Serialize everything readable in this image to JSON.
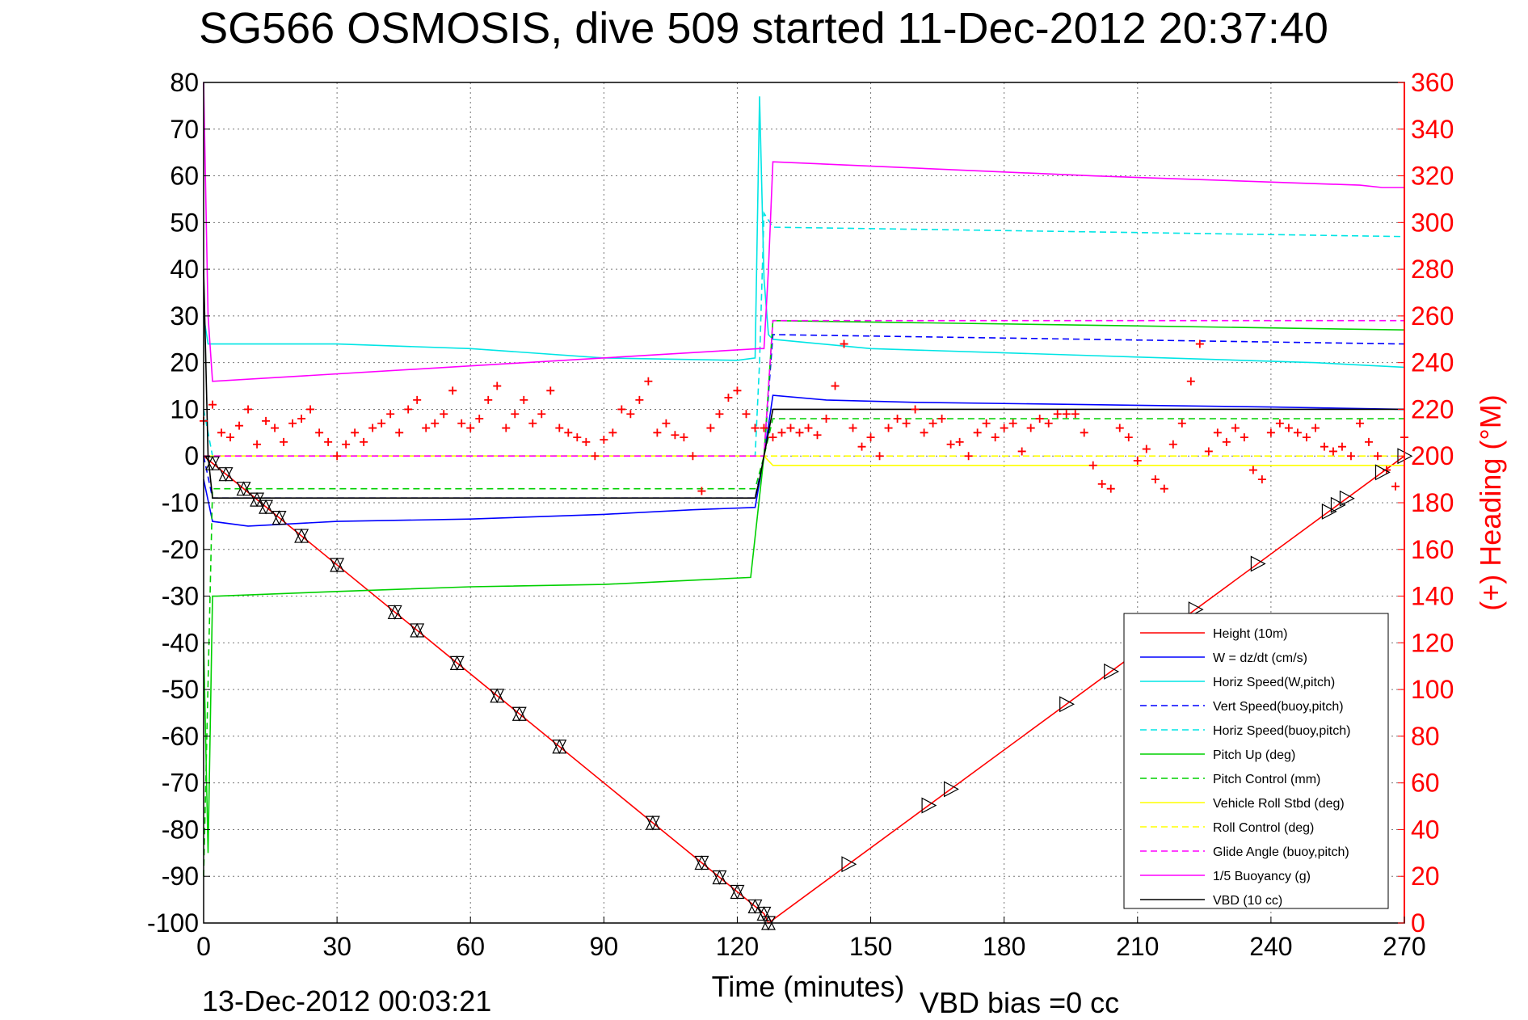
{
  "chart_data": {
    "type": "line",
    "title": "SG566 OSMOSIS, dive 509 started 11-Dec-2012 20:37:40",
    "xlabel": "Time (minutes)",
    "ylabel": "",
    "ylabel_right": "(+) Heading (°M)",
    "xlim": [
      0,
      270
    ],
    "ylim": [
      -100,
      80
    ],
    "ylim_right": [
      0,
      360
    ],
    "x_ticks": [
      "0",
      "30",
      "60",
      "90",
      "120",
      "150",
      "180",
      "210",
      "240",
      "270"
    ],
    "y_ticks_left": [
      "80",
      "70",
      "60",
      "50",
      "40",
      "30",
      "20",
      "10",
      "0",
      "-10",
      "-20",
      "-30",
      "-40",
      "-50",
      "-60",
      "-70",
      "-80",
      "-90",
      "-100"
    ],
    "y_ticks_right": [
      "360",
      "340",
      "320",
      "300",
      "280",
      "260",
      "240",
      "220",
      "200",
      "180",
      "160",
      "140",
      "120",
      "100",
      "80",
      "60",
      "40",
      "20",
      "0"
    ],
    "grid": true,
    "legend_position": "bottom-right",
    "footer_date": "13-Dec-2012 00:03:21",
    "footer_bias": "VBD bias =0 cc",
    "series": [
      {
        "name": "Height (10m)",
        "color": "#ff0000",
        "style": "solid",
        "x": [
          0,
          126,
          127,
          270
        ],
        "y": [
          0,
          -98,
          -100,
          0
        ]
      },
      {
        "name": "W = dz/dt (cm/s)",
        "color": "#0000ff",
        "style": "solid",
        "x": [
          0,
          2,
          10,
          30,
          60,
          90,
          110,
          124,
          126,
          128,
          140,
          160,
          200,
          240,
          270
        ],
        "y": [
          -5,
          -14,
          -15,
          -14,
          -13.5,
          -12.5,
          -11.5,
          -11,
          0,
          13,
          12,
          11.5,
          11,
          10.5,
          10
        ]
      },
      {
        "name": "Horiz Speed(W,pitch)",
        "color": "#00e5e5",
        "style": "solid",
        "x": [
          0,
          1,
          30,
          60,
          90,
          120,
          124,
          125,
          126,
          127,
          128,
          150,
          200,
          250,
          270
        ],
        "y": [
          30,
          24,
          24,
          23,
          21,
          20.5,
          21,
          77,
          38,
          26,
          25,
          23,
          21.5,
          20,
          19
        ]
      },
      {
        "name": "Vert Speed(buoy,pitch)",
        "color": "#0000ff",
        "style": "dashed",
        "x": [
          0,
          2,
          124,
          126,
          128,
          270
        ],
        "y": [
          0,
          -9,
          -9,
          0,
          26,
          24
        ]
      },
      {
        "name": "Horiz Speed(buoy,pitch)",
        "color": "#00e5e5",
        "style": "dashed",
        "x": [
          0,
          2,
          124,
          125,
          126,
          128,
          200,
          270
        ],
        "y": [
          10,
          0,
          0,
          20,
          52,
          49,
          48,
          47
        ]
      },
      {
        "name": "Pitch Up (deg)",
        "color": "#00d000",
        "style": "solid",
        "x": [
          0,
          1,
          2,
          3,
          30,
          60,
          90,
          123,
          126,
          128,
          200,
          270
        ],
        "y": [
          -40,
          -85,
          -30,
          -30,
          -29,
          -28,
          -27.5,
          -26,
          0,
          29,
          28,
          27
        ]
      },
      {
        "name": "Pitch Control (mm)",
        "color": "#00d000",
        "style": "dashed",
        "x": [
          0,
          2,
          124,
          126,
          128,
          270
        ],
        "y": [
          -90,
          -7,
          -7,
          0,
          8,
          8
        ]
      },
      {
        "name": "Vehicle Roll Stbd (deg)",
        "color": "#ffff00",
        "style": "solid",
        "x": [
          0,
          2,
          124,
          126,
          128,
          270
        ],
        "y": [
          0,
          0,
          0,
          0,
          -2,
          -2
        ]
      },
      {
        "name": "Roll Control (deg)",
        "color": "#ffff00",
        "style": "dashed",
        "x": [
          0,
          270
        ],
        "y": [
          0,
          0
        ]
      },
      {
        "name": "Glide Angle (buoy,pitch)",
        "color": "#ff00ff",
        "style": "dashed",
        "x": [
          0,
          2,
          124,
          126,
          128,
          270
        ],
        "y": [
          0,
          0,
          0,
          0,
          29,
          29
        ]
      },
      {
        "name": "1/5 Buoyancy (g)",
        "color": "#ff00ff",
        "style": "solid",
        "x": [
          0,
          1,
          2,
          125,
          126,
          127,
          128,
          200,
          260,
          265,
          270
        ],
        "y": [
          80,
          30,
          16,
          23,
          23,
          40,
          63,
          60,
          58,
          57.5,
          57.5
        ]
      },
      {
        "name": "VBD (10 cc)",
        "color": "#000000",
        "style": "solid",
        "x": [
          0,
          1,
          2,
          124,
          125,
          126,
          128,
          270
        ],
        "y": [
          40,
          0,
          -9,
          -9,
          -5,
          0,
          10,
          10
        ]
      }
    ],
    "heading": {
      "axis": "right",
      "color": "#ff0000",
      "marker": "+",
      "values": [
        [
          0,
          215
        ],
        [
          2,
          222
        ],
        [
          4,
          210
        ],
        [
          6,
          208
        ],
        [
          8,
          213
        ],
        [
          10,
          220
        ],
        [
          12,
          205
        ],
        [
          14,
          215
        ],
        [
          16,
          212
        ],
        [
          18,
          206
        ],
        [
          20,
          214
        ],
        [
          22,
          216
        ],
        [
          24,
          220
        ],
        [
          26,
          210
        ],
        [
          28,
          206
        ],
        [
          30,
          200
        ],
        [
          32,
          205
        ],
        [
          34,
          210
        ],
        [
          36,
          206
        ],
        [
          38,
          212
        ],
        [
          40,
          214
        ],
        [
          42,
          218
        ],
        [
          44,
          210
        ],
        [
          46,
          220
        ],
        [
          48,
          224
        ],
        [
          50,
          212
        ],
        [
          52,
          214
        ],
        [
          54,
          218
        ],
        [
          56,
          228
        ],
        [
          58,
          214
        ],
        [
          60,
          212
        ],
        [
          62,
          216
        ],
        [
          64,
          224
        ],
        [
          66,
          230
        ],
        [
          68,
          212
        ],
        [
          70,
          218
        ],
        [
          72,
          224
        ],
        [
          74,
          214
        ],
        [
          76,
          218
        ],
        [
          78,
          228
        ],
        [
          80,
          212
        ],
        [
          82,
          210
        ],
        [
          84,
          208
        ],
        [
          86,
          206
        ],
        [
          88,
          200
        ],
        [
          90,
          207
        ],
        [
          92,
          210
        ],
        [
          94,
          220
        ],
        [
          96,
          218
        ],
        [
          98,
          224
        ],
        [
          100,
          232
        ],
        [
          102,
          210
        ],
        [
          104,
          214
        ],
        [
          106,
          209
        ],
        [
          108,
          208
        ],
        [
          110,
          200
        ],
        [
          112,
          185
        ],
        [
          114,
          212
        ],
        [
          116,
          218
        ],
        [
          118,
          225
        ],
        [
          120,
          228
        ],
        [
          122,
          218
        ],
        [
          124,
          212
        ],
        [
          126,
          212
        ],
        [
          128,
          208
        ],
        [
          130,
          210
        ],
        [
          132,
          212
        ],
        [
          134,
          210
        ],
        [
          136,
          212
        ],
        [
          138,
          209
        ],
        [
          140,
          216
        ],
        [
          142,
          230
        ],
        [
          144,
          248
        ],
        [
          146,
          212
        ],
        [
          148,
          204
        ],
        [
          150,
          208
        ],
        [
          152,
          200
        ],
        [
          154,
          212
        ],
        [
          156,
          216
        ],
        [
          158,
          214
        ],
        [
          160,
          220
        ],
        [
          162,
          210
        ],
        [
          164,
          214
        ],
        [
          166,
          216
        ],
        [
          168,
          205
        ],
        [
          170,
          206
        ],
        [
          172,
          200
        ],
        [
          174,
          210
        ],
        [
          176,
          214
        ],
        [
          178,
          208
        ],
        [
          180,
          212
        ],
        [
          182,
          214
        ],
        [
          184,
          202
        ],
        [
          186,
          212
        ],
        [
          188,
          216
        ],
        [
          190,
          214
        ],
        [
          192,
          218
        ],
        [
          194,
          218
        ],
        [
          196,
          218
        ],
        [
          198,
          210
        ],
        [
          200,
          196
        ],
        [
          202,
          188
        ],
        [
          204,
          186
        ],
        [
          206,
          212
        ],
        [
          208,
          208
        ],
        [
          210,
          198
        ],
        [
          212,
          203
        ],
        [
          214,
          190
        ],
        [
          216,
          186
        ],
        [
          218,
          205
        ],
        [
          220,
          214
        ],
        [
          222,
          232
        ],
        [
          224,
          248
        ],
        [
          226,
          202
        ],
        [
          228,
          210
        ],
        [
          230,
          206
        ],
        [
          232,
          212
        ],
        [
          234,
          208
        ],
        [
          236,
          194
        ],
        [
          238,
          190
        ],
        [
          240,
          210
        ],
        [
          242,
          214
        ],
        [
          244,
          212
        ],
        [
          246,
          210
        ],
        [
          248,
          208
        ],
        [
          250,
          212
        ],
        [
          252,
          204
        ],
        [
          254,
          202
        ],
        [
          256,
          204
        ],
        [
          258,
          200
        ],
        [
          260,
          214
        ],
        [
          262,
          206
        ],
        [
          264,
          200
        ],
        [
          266,
          194
        ],
        [
          268,
          187
        ],
        [
          270,
          208
        ]
      ]
    },
    "markers": {
      "color": "#000000",
      "down": [
        2,
        5,
        9,
        12,
        14,
        17,
        22,
        30,
        43,
        48,
        57,
        66,
        71,
        80,
        101,
        112,
        116,
        120,
        124,
        126,
        127
      ],
      "up": [
        145,
        163,
        168,
        194,
        204,
        218,
        223,
        237,
        253,
        255,
        257,
        265,
        270
      ]
    }
  }
}
